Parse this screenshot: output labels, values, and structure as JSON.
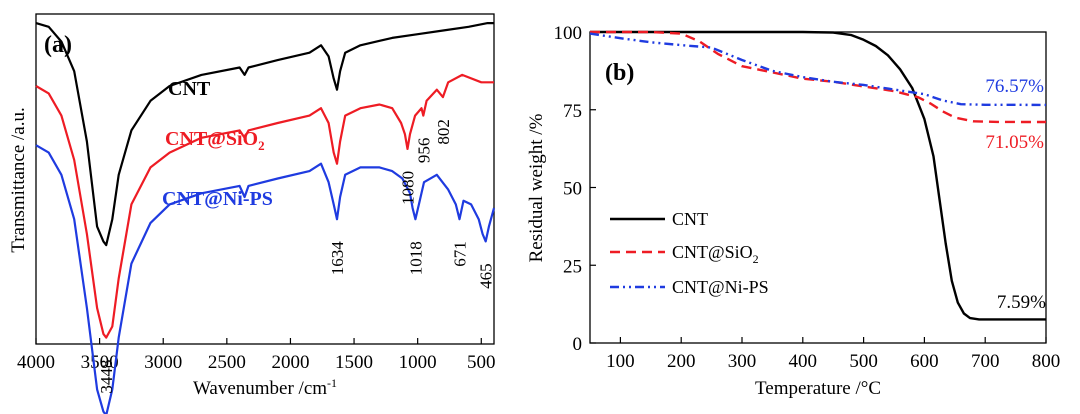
{
  "chart_data": [
    {
      "type": "line",
      "panel_label": "(a)",
      "xlabel": "Wavenumber /cm",
      "xlabel_sup": "-1",
      "ylabel": "Transmittance /a.u.",
      "xlim": [
        4000,
        400
      ],
      "x_reversed": true,
      "xticks": [
        "4000",
        "3500",
        "3000",
        "2500",
        "2000",
        "1500",
        "1000",
        "500"
      ],
      "series": [
        {
          "name": "CNT",
          "label_parts": [
            "CNT"
          ],
          "color": "#000000",
          "points": [
            [
              4000,
              0.87
            ],
            [
              3900,
              0.86
            ],
            [
              3800,
              0.82
            ],
            [
              3700,
              0.74
            ],
            [
              3600,
              0.55
            ],
            [
              3520,
              0.32
            ],
            [
              3470,
              0.28
            ],
            [
              3448,
              0.27
            ],
            [
              3400,
              0.34
            ],
            [
              3350,
              0.46
            ],
            [
              3250,
              0.58
            ],
            [
              3100,
              0.66
            ],
            [
              2950,
              0.7
            ],
            [
              2700,
              0.73
            ],
            [
              2400,
              0.75
            ],
            [
              2360,
              0.73
            ],
            [
              2330,
              0.75
            ],
            [
              2100,
              0.77
            ],
            [
              1850,
              0.79
            ],
            [
              1760,
              0.81
            ],
            [
              1700,
              0.78
            ],
            [
              1660,
              0.72
            ],
            [
              1634,
              0.69
            ],
            [
              1610,
              0.74
            ],
            [
              1570,
              0.79
            ],
            [
              1450,
              0.81
            ],
            [
              1200,
              0.83
            ],
            [
              1000,
              0.84
            ],
            [
              800,
              0.85
            ],
            [
              600,
              0.86
            ],
            [
              450,
              0.87
            ],
            [
              400,
              0.87
            ]
          ]
        },
        {
          "name": "CNT@SiO2",
          "label_parts": [
            "CNT@SiO",
            "2"
          ],
          "color": "#ee1c24",
          "points": [
            [
              4000,
              0.7
            ],
            [
              3900,
              0.68
            ],
            [
              3800,
              0.62
            ],
            [
              3700,
              0.5
            ],
            [
              3600,
              0.3
            ],
            [
              3520,
              0.1
            ],
            [
              3470,
              0.03
            ],
            [
              3448,
              0.02
            ],
            [
              3400,
              0.05
            ],
            [
              3350,
              0.18
            ],
            [
              3250,
              0.38
            ],
            [
              3100,
              0.48
            ],
            [
              2950,
              0.52
            ],
            [
              2700,
              0.56
            ],
            [
              2400,
              0.58
            ],
            [
              2360,
              0.56
            ],
            [
              2330,
              0.58
            ],
            [
              2100,
              0.6
            ],
            [
              1850,
              0.62
            ],
            [
              1760,
              0.64
            ],
            [
              1700,
              0.6
            ],
            [
              1660,
              0.52
            ],
            [
              1634,
              0.49
            ],
            [
              1610,
              0.55
            ],
            [
              1570,
              0.62
            ],
            [
              1450,
              0.64
            ],
            [
              1300,
              0.65
            ],
            [
              1200,
              0.64
            ],
            [
              1130,
              0.6
            ],
            [
              1100,
              0.57
            ],
            [
              1080,
              0.53
            ],
            [
              1060,
              0.57
            ],
            [
              1020,
              0.62
            ],
            [
              970,
              0.64
            ],
            [
              956,
              0.62
            ],
            [
              930,
              0.66
            ],
            [
              850,
              0.69
            ],
            [
              802,
              0.67
            ],
            [
              760,
              0.71
            ],
            [
              650,
              0.73
            ],
            [
              500,
              0.71
            ],
            [
              400,
              0.71
            ]
          ]
        },
        {
          "name": "CNT@Ni-PS",
          "label_parts": [
            "CNT@Ni-PS"
          ],
          "color": "#1f3be0",
          "points": [
            [
              4000,
              0.54
            ],
            [
              3900,
              0.52
            ],
            [
              3800,
              0.46
            ],
            [
              3700,
              0.34
            ],
            [
              3600,
              0.1
            ],
            [
              3520,
              -0.12
            ],
            [
              3470,
              -0.18
            ],
            [
              3448,
              -0.19
            ],
            [
              3400,
              -0.12
            ],
            [
              3350,
              0.02
            ],
            [
              3250,
              0.22
            ],
            [
              3100,
              0.33
            ],
            [
              2950,
              0.38
            ],
            [
              2700,
              0.41
            ],
            [
              2400,
              0.43
            ],
            [
              2360,
              0.4
            ],
            [
              2330,
              0.43
            ],
            [
              2100,
              0.45
            ],
            [
              1850,
              0.47
            ],
            [
              1760,
              0.49
            ],
            [
              1700,
              0.44
            ],
            [
              1660,
              0.38
            ],
            [
              1634,
              0.34
            ],
            [
              1610,
              0.4
            ],
            [
              1570,
              0.46
            ],
            [
              1450,
              0.48
            ],
            [
              1300,
              0.48
            ],
            [
              1200,
              0.47
            ],
            [
              1120,
              0.45
            ],
            [
              1060,
              0.41
            ],
            [
              1040,
              0.37
            ],
            [
              1018,
              0.34
            ],
            [
              990,
              0.38
            ],
            [
              950,
              0.44
            ],
            [
              850,
              0.46
            ],
            [
              760,
              0.42
            ],
            [
              700,
              0.38
            ],
            [
              671,
              0.34
            ],
            [
              640,
              0.39
            ],
            [
              580,
              0.38
            ],
            [
              520,
              0.34
            ],
            [
              490,
              0.3
            ],
            [
              465,
              0.28
            ],
            [
              440,
              0.32
            ],
            [
              400,
              0.37
            ]
          ]
        }
      ],
      "annotations": [
        "3448",
        "1634",
        "1080",
        "956",
        "802",
        "1018",
        "671",
        "465"
      ]
    },
    {
      "type": "line",
      "panel_label": "(b)",
      "xlabel": "Temperature /°C",
      "ylabel": "Residual weight /%",
      "xlim": [
        50,
        800
      ],
      "ylim": [
        0,
        100
      ],
      "xticks": [
        100,
        200,
        300,
        400,
        500,
        600,
        700,
        800
      ],
      "yticks": [
        0,
        25,
        50,
        75,
        100
      ],
      "legend_position": "bottom-left",
      "series": [
        {
          "name": "CNT",
          "label_parts": [
            "CNT"
          ],
          "color": "#000000",
          "dash": "solid",
          "x": [
            50,
            200,
            300,
            400,
            450,
            480,
            500,
            520,
            540,
            560,
            580,
            600,
            615,
            625,
            635,
            645,
            655,
            665,
            675,
            690,
            720,
            800
          ],
          "y": [
            100,
            100,
            100,
            100,
            99.8,
            99,
            97.5,
            95.5,
            92.5,
            88,
            82,
            72,
            60,
            46,
            32,
            20,
            13,
            9.5,
            8,
            7.6,
            7.6,
            7.59
          ]
        },
        {
          "name": "CNT@SiO2",
          "label_parts": [
            "CNT@SiO",
            "2"
          ],
          "color": "#ee1c24",
          "dash": "dashed",
          "x": [
            50,
            100,
            150,
            200,
            230,
            260,
            300,
            350,
            400,
            450,
            500,
            550,
            590,
            610,
            630,
            650,
            680,
            720,
            760,
            800
          ],
          "y": [
            100,
            100,
            100,
            99.5,
            97,
            93,
            89,
            87,
            85,
            84,
            82.5,
            81,
            79,
            77,
            74.5,
            72.5,
            71.3,
            71.1,
            71.05,
            71.05
          ]
        },
        {
          "name": "CNT@Ni-PS",
          "label_parts": [
            "CNT@Ni-PS"
          ],
          "color": "#1f3be0",
          "dash": "dashdotdot",
          "x": [
            50,
            100,
            150,
            200,
            250,
            300,
            350,
            400,
            450,
            500,
            550,
            600,
            630,
            660,
            700,
            800
          ],
          "y": [
            99.5,
            98,
            96.7,
            95.8,
            95,
            91,
            87.5,
            85.5,
            84,
            83,
            81.5,
            80,
            78,
            76.8,
            76.6,
            76.57
          ]
        }
      ],
      "annotations": [
        {
          "text": "76.57%",
          "color": "#1f3be0"
        },
        {
          "text": "71.05%",
          "color": "#ee1c24"
        },
        {
          "text": "7.59%",
          "color": "#000000"
        }
      ]
    }
  ]
}
